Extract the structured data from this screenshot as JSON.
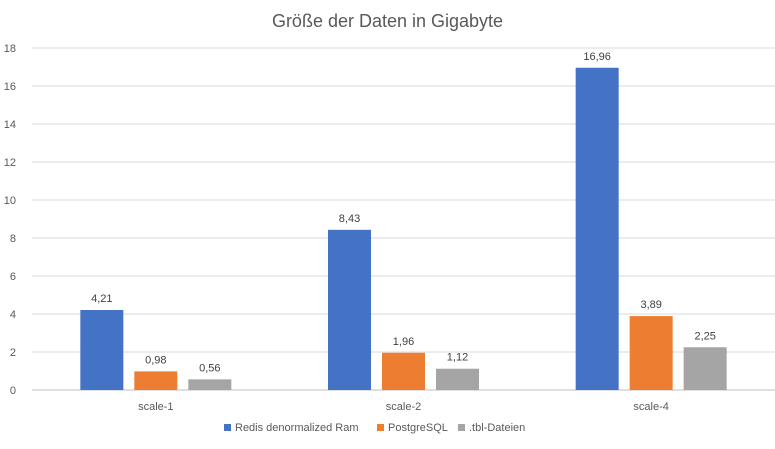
{
  "chart_data": {
    "type": "bar",
    "title": "Größe der Daten in Gigabyte",
    "xlabel": "",
    "ylabel": "",
    "categories": [
      "scale-1",
      "scale-2",
      "scale-4"
    ],
    "series": [
      {
        "name": "Redis denormalized Ram",
        "values": [
          4.21,
          8.43,
          16.96
        ],
        "labels": [
          "4,21",
          "8,43",
          "16,96"
        ],
        "color": "#4472C4"
      },
      {
        "name": "PostgreSQL",
        "values": [
          0.98,
          1.96,
          3.89
        ],
        "labels": [
          "0,98",
          "1,96",
          "3,89"
        ],
        "color": "#ED7D31"
      },
      {
        "name": ".tbl-Dateien",
        "values": [
          0.56,
          1.12,
          2.25
        ],
        "labels": [
          "0,56",
          "1,12",
          "2,25"
        ],
        "color": "#A5A5A5"
      }
    ],
    "ylim": [
      0,
      18
    ],
    "yticks": [
      0,
      2,
      4,
      6,
      8,
      10,
      12,
      14,
      16,
      18
    ],
    "ytick_labels": [
      "0",
      "2",
      "4",
      "6",
      "8",
      "10",
      "12",
      "14",
      "16",
      "18"
    ],
    "grid": true,
    "legend_position": "bottom"
  }
}
